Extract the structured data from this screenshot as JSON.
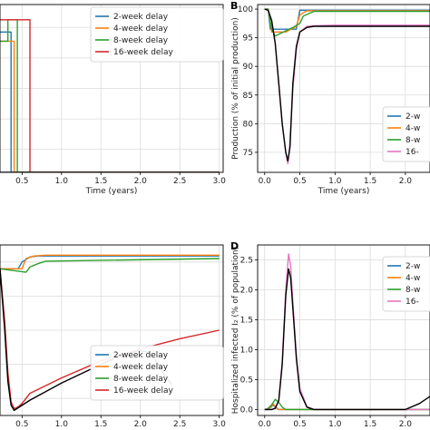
{
  "figure": {
    "panels": [
      {
        "id": "A",
        "letter": "",
        "x_label": "Time (years)",
        "y_label": "",
        "x_ticks": [
          "0.5",
          "1.0",
          "1.5",
          "2.0",
          "2.5",
          "3.0"
        ],
        "y_ticks": []
      },
      {
        "id": "B",
        "letter": "B",
        "x_label": "Time (years)",
        "y_label": "Production (% of initial production)",
        "x_ticks": [
          "0.0",
          "0.5",
          "1.0",
          "1.5",
          "2.0"
        ],
        "y_ticks": [
          "75",
          "80",
          "85",
          "90",
          "95",
          "100"
        ]
      },
      {
        "id": "C",
        "letter": "",
        "x_label": "Time (years)",
        "y_label": "",
        "x_ticks": [
          "0.5",
          "1.0",
          "1.5",
          "2.0",
          "2.5",
          "3.0"
        ],
        "y_ticks": []
      },
      {
        "id": "D",
        "letter": "D",
        "x_label": "Time (years)",
        "y_label": "Hospitalized infected I₂ (% of population)",
        "x_ticks": [
          "0.0",
          "0.5",
          "1.0",
          "1.5",
          "2.0"
        ],
        "y_ticks": [
          "0.0",
          "0.5",
          "1.0",
          "1.5",
          "2.0",
          "2.5"
        ]
      }
    ],
    "legend_full": [
      "2-week delay",
      "4-week delay",
      "8-week delay",
      "16-week delay"
    ],
    "legend_cut": [
      "2-w",
      "4-w",
      "8-w",
      "16-"
    ]
  },
  "chart_data": [
    {
      "panel": "A",
      "type": "line",
      "xlabel": "Time (years)",
      "xlim": [
        0.22,
        3.05
      ],
      "ylim": [
        0,
        1.1
      ],
      "grid": true,
      "legend": "top-right",
      "series": [
        {
          "name": "2-week delay",
          "color": "#1f77b4",
          "x": [
            0.22,
            0.24,
            0.24,
            0.3,
            0.3,
            0.36,
            0.36,
            3.0
          ],
          "y": [
            0.92,
            0.92,
            0.92,
            0.92,
            0.92,
            0.92,
            0.0,
            0.0
          ]
        },
        {
          "name": "4-week delay",
          "color": "#ff7f0e",
          "x": [
            0.22,
            0.3,
            0.3,
            0.4,
            0.4,
            3.0
          ],
          "y": [
            0.86,
            0.86,
            0.86,
            0.86,
            0.0,
            0.0
          ]
        },
        {
          "name": "8-week delay",
          "color": "#2ca02c",
          "x": [
            0.22,
            0.32,
            0.32,
            0.44,
            0.44,
            3.0
          ],
          "y": [
            0.86,
            0.86,
            1.0,
            1.0,
            0.0,
            0.0
          ]
        },
        {
          "name": "16-week delay",
          "color": "#d62728",
          "x": [
            0.22,
            0.34,
            0.34,
            0.6,
            0.6,
            3.0
          ],
          "y": [
            1.0,
            1.0,
            1.0,
            1.0,
            0.0,
            0.0
          ]
        },
        {
          "name": "",
          "color": "#000000",
          "x": [
            0.22,
            3.0
          ],
          "y": [
            0.0,
            0.0
          ]
        }
      ]
    },
    {
      "panel": "B",
      "type": "line",
      "xlabel": "Time (years)",
      "ylabel": "Production (% of initial production)",
      "xlim": [
        -0.1,
        2.35
      ],
      "ylim": [
        71.5,
        100.8
      ],
      "grid": true,
      "legend": "bottom-right",
      "series": [
        {
          "name": "2-week delay",
          "color": "#1f77b4",
          "x": [
            0.0,
            0.05,
            0.08,
            0.1,
            0.3,
            0.45,
            0.5,
            2.35
          ],
          "y": [
            100,
            100,
            96.5,
            96.5,
            96.5,
            96.5,
            99.8,
            99.8
          ]
        },
        {
          "name": "4-week delay",
          "color": "#ff7f0e",
          "x": [
            0.0,
            0.05,
            0.1,
            0.3,
            0.45,
            0.5,
            0.6,
            2.35
          ],
          "y": [
            100,
            100,
            96.0,
            96.0,
            97.0,
            99.0,
            99.7,
            99.7
          ]
        },
        {
          "name": "8-week delay",
          "color": "#2ca02c",
          "x": [
            0.0,
            0.05,
            0.1,
            0.15,
            0.2,
            0.3,
            0.4,
            0.5,
            0.55,
            0.7,
            2.35
          ],
          "y": [
            100,
            100,
            96.5,
            95.3,
            95.6,
            96.2,
            96.8,
            97.5,
            98.8,
            99.6,
            99.6
          ]
        },
        {
          "name": "16-week delay",
          "color": "#e377c2",
          "x": [
            0.0,
            0.05,
            0.1,
            0.15,
            0.2,
            0.25,
            0.3,
            0.33,
            0.35,
            0.4,
            0.45,
            0.5,
            0.6,
            0.7,
            1.0,
            2.35
          ],
          "y": [
            100,
            99.8,
            98,
            94,
            87,
            80,
            75,
            73,
            75,
            86,
            93,
            96,
            97,
            97.1,
            97.2,
            97.2
          ]
        },
        {
          "name": "",
          "color": "#000000",
          "x": [
            0.0,
            0.05,
            0.1,
            0.15,
            0.2,
            0.25,
            0.3,
            0.33,
            0.36,
            0.4,
            0.45,
            0.5,
            0.6,
            0.7,
            1.0,
            2.35
          ],
          "y": [
            100,
            99.8,
            98,
            94,
            87,
            80,
            75,
            73.5,
            76,
            87,
            93.5,
            96,
            96.8,
            97.0,
            97.0,
            97.0
          ]
        }
      ]
    },
    {
      "panel": "C",
      "type": "line",
      "xlabel": "Time (years)",
      "xlim": [
        0.22,
        3.05
      ],
      "ylim": [
        0,
        1.0
      ],
      "grid": true,
      "legend": "bottom-right",
      "series": [
        {
          "name": "2-week delay",
          "color": "#1f77b4",
          "x": [
            0.22,
            0.45,
            0.5,
            0.6,
            0.7,
            3.0
          ],
          "y": [
            0.86,
            0.86,
            0.9,
            0.93,
            0.935,
            0.935
          ]
        },
        {
          "name": "4-week delay",
          "color": "#ff7f0e",
          "x": [
            0.22,
            0.5,
            0.55,
            0.65,
            0.8,
            3.0
          ],
          "y": [
            0.86,
            0.86,
            0.92,
            0.935,
            0.94,
            0.94
          ]
        },
        {
          "name": "8-week delay",
          "color": "#2ca02c",
          "x": [
            0.22,
            0.55,
            0.6,
            0.7,
            0.8,
            3.0
          ],
          "y": [
            0.86,
            0.84,
            0.87,
            0.89,
            0.905,
            0.92
          ]
        },
        {
          "name": "16-week delay",
          "color": "#d62728",
          "x": [
            0.22,
            0.28,
            0.32,
            0.36,
            0.4,
            0.45,
            0.5,
            0.55,
            0.6,
            1.0,
            1.5,
            2.0,
            2.5,
            3.0
          ],
          "y": [
            0.86,
            0.55,
            0.25,
            0.08,
            0.04,
            0.05,
            0.07,
            0.1,
            0.13,
            0.22,
            0.32,
            0.39,
            0.45,
            0.5
          ]
        },
        {
          "name": "",
          "color": "#000000",
          "x": [
            0.22,
            0.28,
            0.32,
            0.36,
            0.4,
            0.45,
            0.6,
            1.0,
            1.5,
            1.8,
            2.0,
            2.1,
            2.2,
            2.3,
            2.4
          ],
          "y": [
            0.86,
            0.5,
            0.2,
            0.06,
            0.03,
            0.045,
            0.09,
            0.19,
            0.3,
            0.36,
            0.38,
            0.37,
            0.32,
            0.24,
            0.18
          ]
        }
      ]
    },
    {
      "panel": "D",
      "type": "line",
      "xlabel": "Time (years)",
      "ylabel": "Hospitalized infected I₂ (% of population)",
      "xlim": [
        -0.1,
        2.35
      ],
      "ylim": [
        -0.1,
        2.75
      ],
      "grid": true,
      "legend": "top-right",
      "series": [
        {
          "name": "2-week delay",
          "color": "#1f77b4",
          "x": [
            0.0,
            0.05,
            0.1,
            0.12,
            0.15,
            0.2,
            2.35
          ],
          "y": [
            0.0,
            0.0,
            0.05,
            0.08,
            0.04,
            0.0,
            0.0
          ]
        },
        {
          "name": "4-week delay",
          "color": "#ff7f0e",
          "x": [
            0.0,
            0.05,
            0.1,
            0.12,
            0.15,
            0.2,
            2.35
          ],
          "y": [
            0.0,
            0.0,
            0.06,
            0.1,
            0.05,
            0.0,
            0.0
          ]
        },
        {
          "name": "8-week delay",
          "color": "#2ca02c",
          "x": [
            0.0,
            0.05,
            0.1,
            0.15,
            0.2,
            0.25,
            0.3,
            2.35
          ],
          "y": [
            0.0,
            0.02,
            0.08,
            0.17,
            0.12,
            0.04,
            0.0,
            0.0
          ]
        },
        {
          "name": "16-week delay",
          "color": "#e377c2",
          "x": [
            0.0,
            0.1,
            0.15,
            0.2,
            0.25,
            0.3,
            0.34,
            0.37,
            0.4,
            0.45,
            0.5,
            0.6,
            0.7,
            2.35
          ],
          "y": [
            0.0,
            0.0,
            0.02,
            0.15,
            0.8,
            2.0,
            2.6,
            2.4,
            1.8,
            0.9,
            0.35,
            0.05,
            0.0,
            0.0
          ]
        },
        {
          "name": "",
          "color": "#000000",
          "x": [
            0.0,
            0.1,
            0.15,
            0.2,
            0.25,
            0.3,
            0.34,
            0.37,
            0.4,
            0.45,
            0.5,
            0.6,
            0.7,
            2.0,
            2.2,
            2.35
          ],
          "y": [
            0.0,
            0.0,
            0.02,
            0.15,
            0.75,
            1.9,
            2.35,
            2.2,
            1.7,
            0.85,
            0.3,
            0.04,
            0.0,
            0.0,
            0.1,
            0.22
          ]
        }
      ]
    }
  ]
}
